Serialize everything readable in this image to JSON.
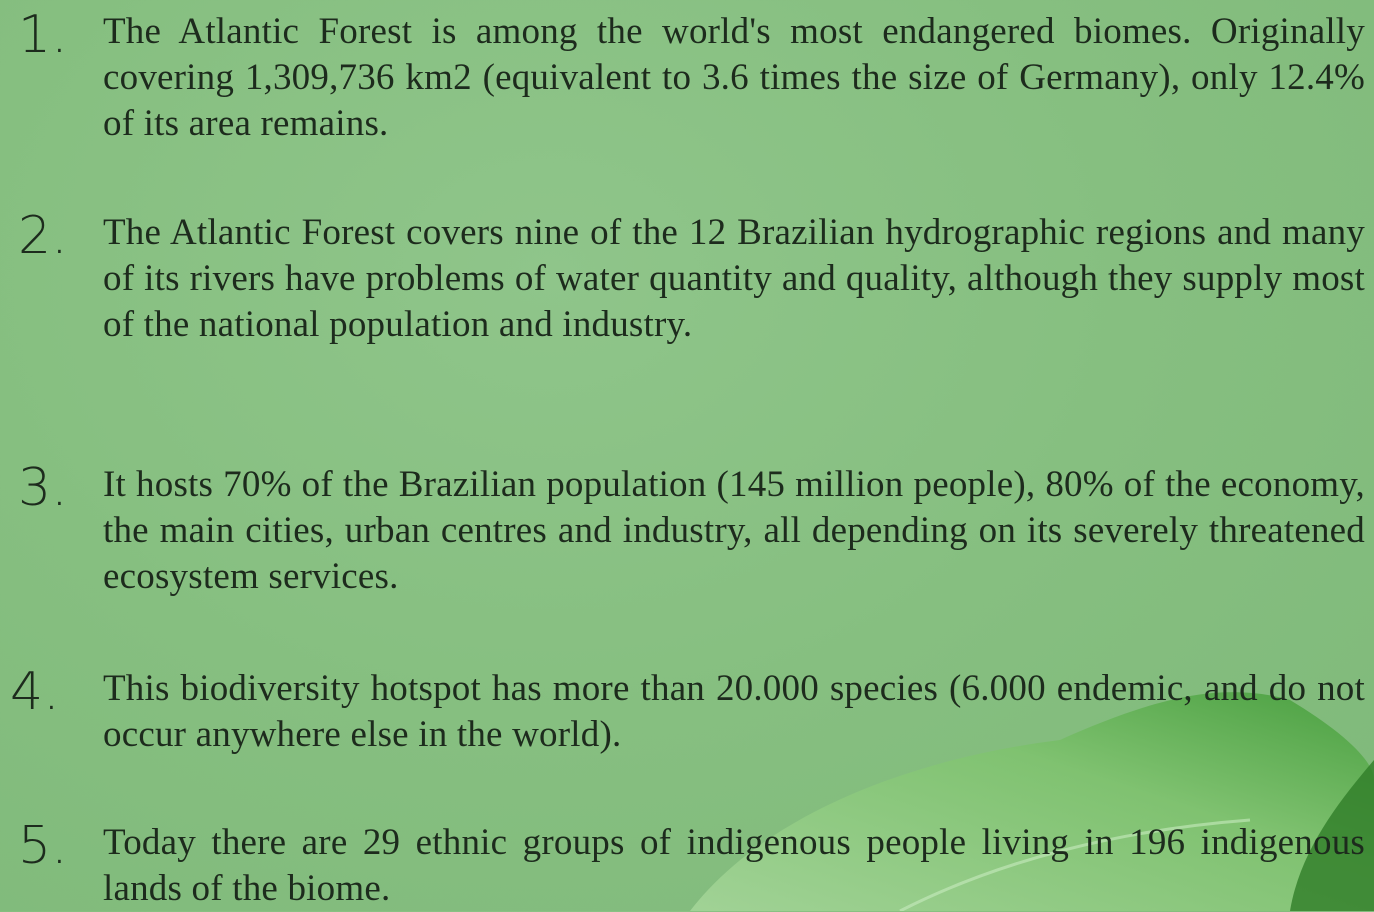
{
  "items": [
    {
      "number": "1.",
      "text": "The Atlantic Forest is among the world's most endangered biomes. Originally covering 1,309,736 km2 (equivalent to 3.6 times the size of Germany), only 12.4% of its area remains."
    },
    {
      "number": "2.",
      "text": "The Atlantic Forest covers nine of the 12 Brazilian hydrographic regions and many of its rivers have problems of water quantity and quality, although they supply most of the national population and industry."
    },
    {
      "number": "3.",
      "text": "It hosts 70% of the Brazilian population (145 million people), 80% of the economy, the main cities, urban centres and industry, all depending on its severely threatened ecosystem services."
    },
    {
      "number": "4.",
      "text": "This biodiversity hotspot has more than 20.000 species (6.000 endemic, and do not occur anywhere else in the world)."
    },
    {
      "number": "5.",
      "text": "Today there are 29 ethnic groups of indigenous people living in 196 indigenous lands of the biome."
    }
  ]
}
